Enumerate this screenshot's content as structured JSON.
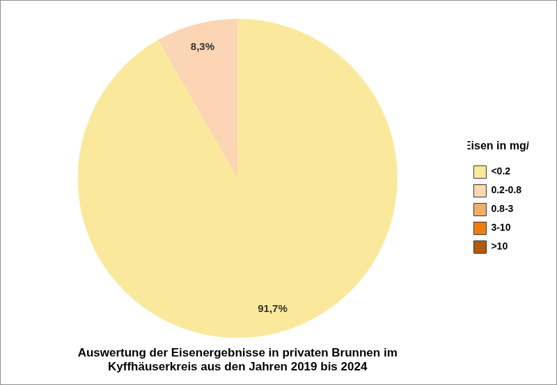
{
  "chart_data": {
    "type": "pie",
    "title": [
      "Auswertung der Eisenergebnisse in privaten Brunnen im",
      "Kyffhäuserkreis aus den Jahren 2019 bis 2024"
    ],
    "legend_title": "Eisen in mg/l",
    "categories": [
      "<0.2",
      "0.2-0.8",
      "0.8-3",
      "3-10",
      ">10"
    ],
    "values": [
      91.7,
      8.3,
      0,
      0,
      0
    ],
    "value_labels": [
      "91,7%",
      "8,3%",
      null,
      null,
      null
    ],
    "colors": [
      "#fae99c",
      "#fcd5b4",
      "#f5ad65",
      "#f07d10",
      "#b05a0c"
    ],
    "data_labels": true,
    "legend": "right"
  }
}
